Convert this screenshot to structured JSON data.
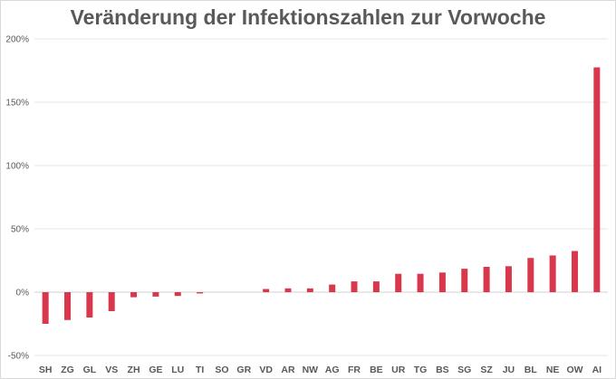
{
  "chart_data": {
    "type": "bar",
    "title": "Veränderung der Infektionszahlen zur Vorwoche",
    "xlabel": "",
    "ylabel": "",
    "ylim": [
      -50,
      200
    ],
    "yticks": [
      -50,
      0,
      50,
      100,
      150,
      200
    ],
    "ytick_labels": [
      "-50%",
      "0%",
      "50%",
      "100%",
      "150%",
      "200%"
    ],
    "categories": [
      "SH",
      "ZG",
      "GL",
      "VS",
      "ZH",
      "GE",
      "LU",
      "TI",
      "SO",
      "GR",
      "VD",
      "AR",
      "NW",
      "AG",
      "FR",
      "BE",
      "UR",
      "TG",
      "BS",
      "SG",
      "SZ",
      "JU",
      "BL",
      "NE",
      "OW",
      "AI"
    ],
    "values": [
      -25,
      -22,
      -20,
      -15,
      -4,
      -3.5,
      -3,
      -1,
      0,
      0,
      2.5,
      3,
      3,
      6,
      8.5,
      8.5,
      14.5,
      14.5,
      15.5,
      18.5,
      20,
      20.5,
      27,
      29,
      32.5,
      177.5
    ],
    "bar_color": "#d9384c",
    "grid": true
  }
}
